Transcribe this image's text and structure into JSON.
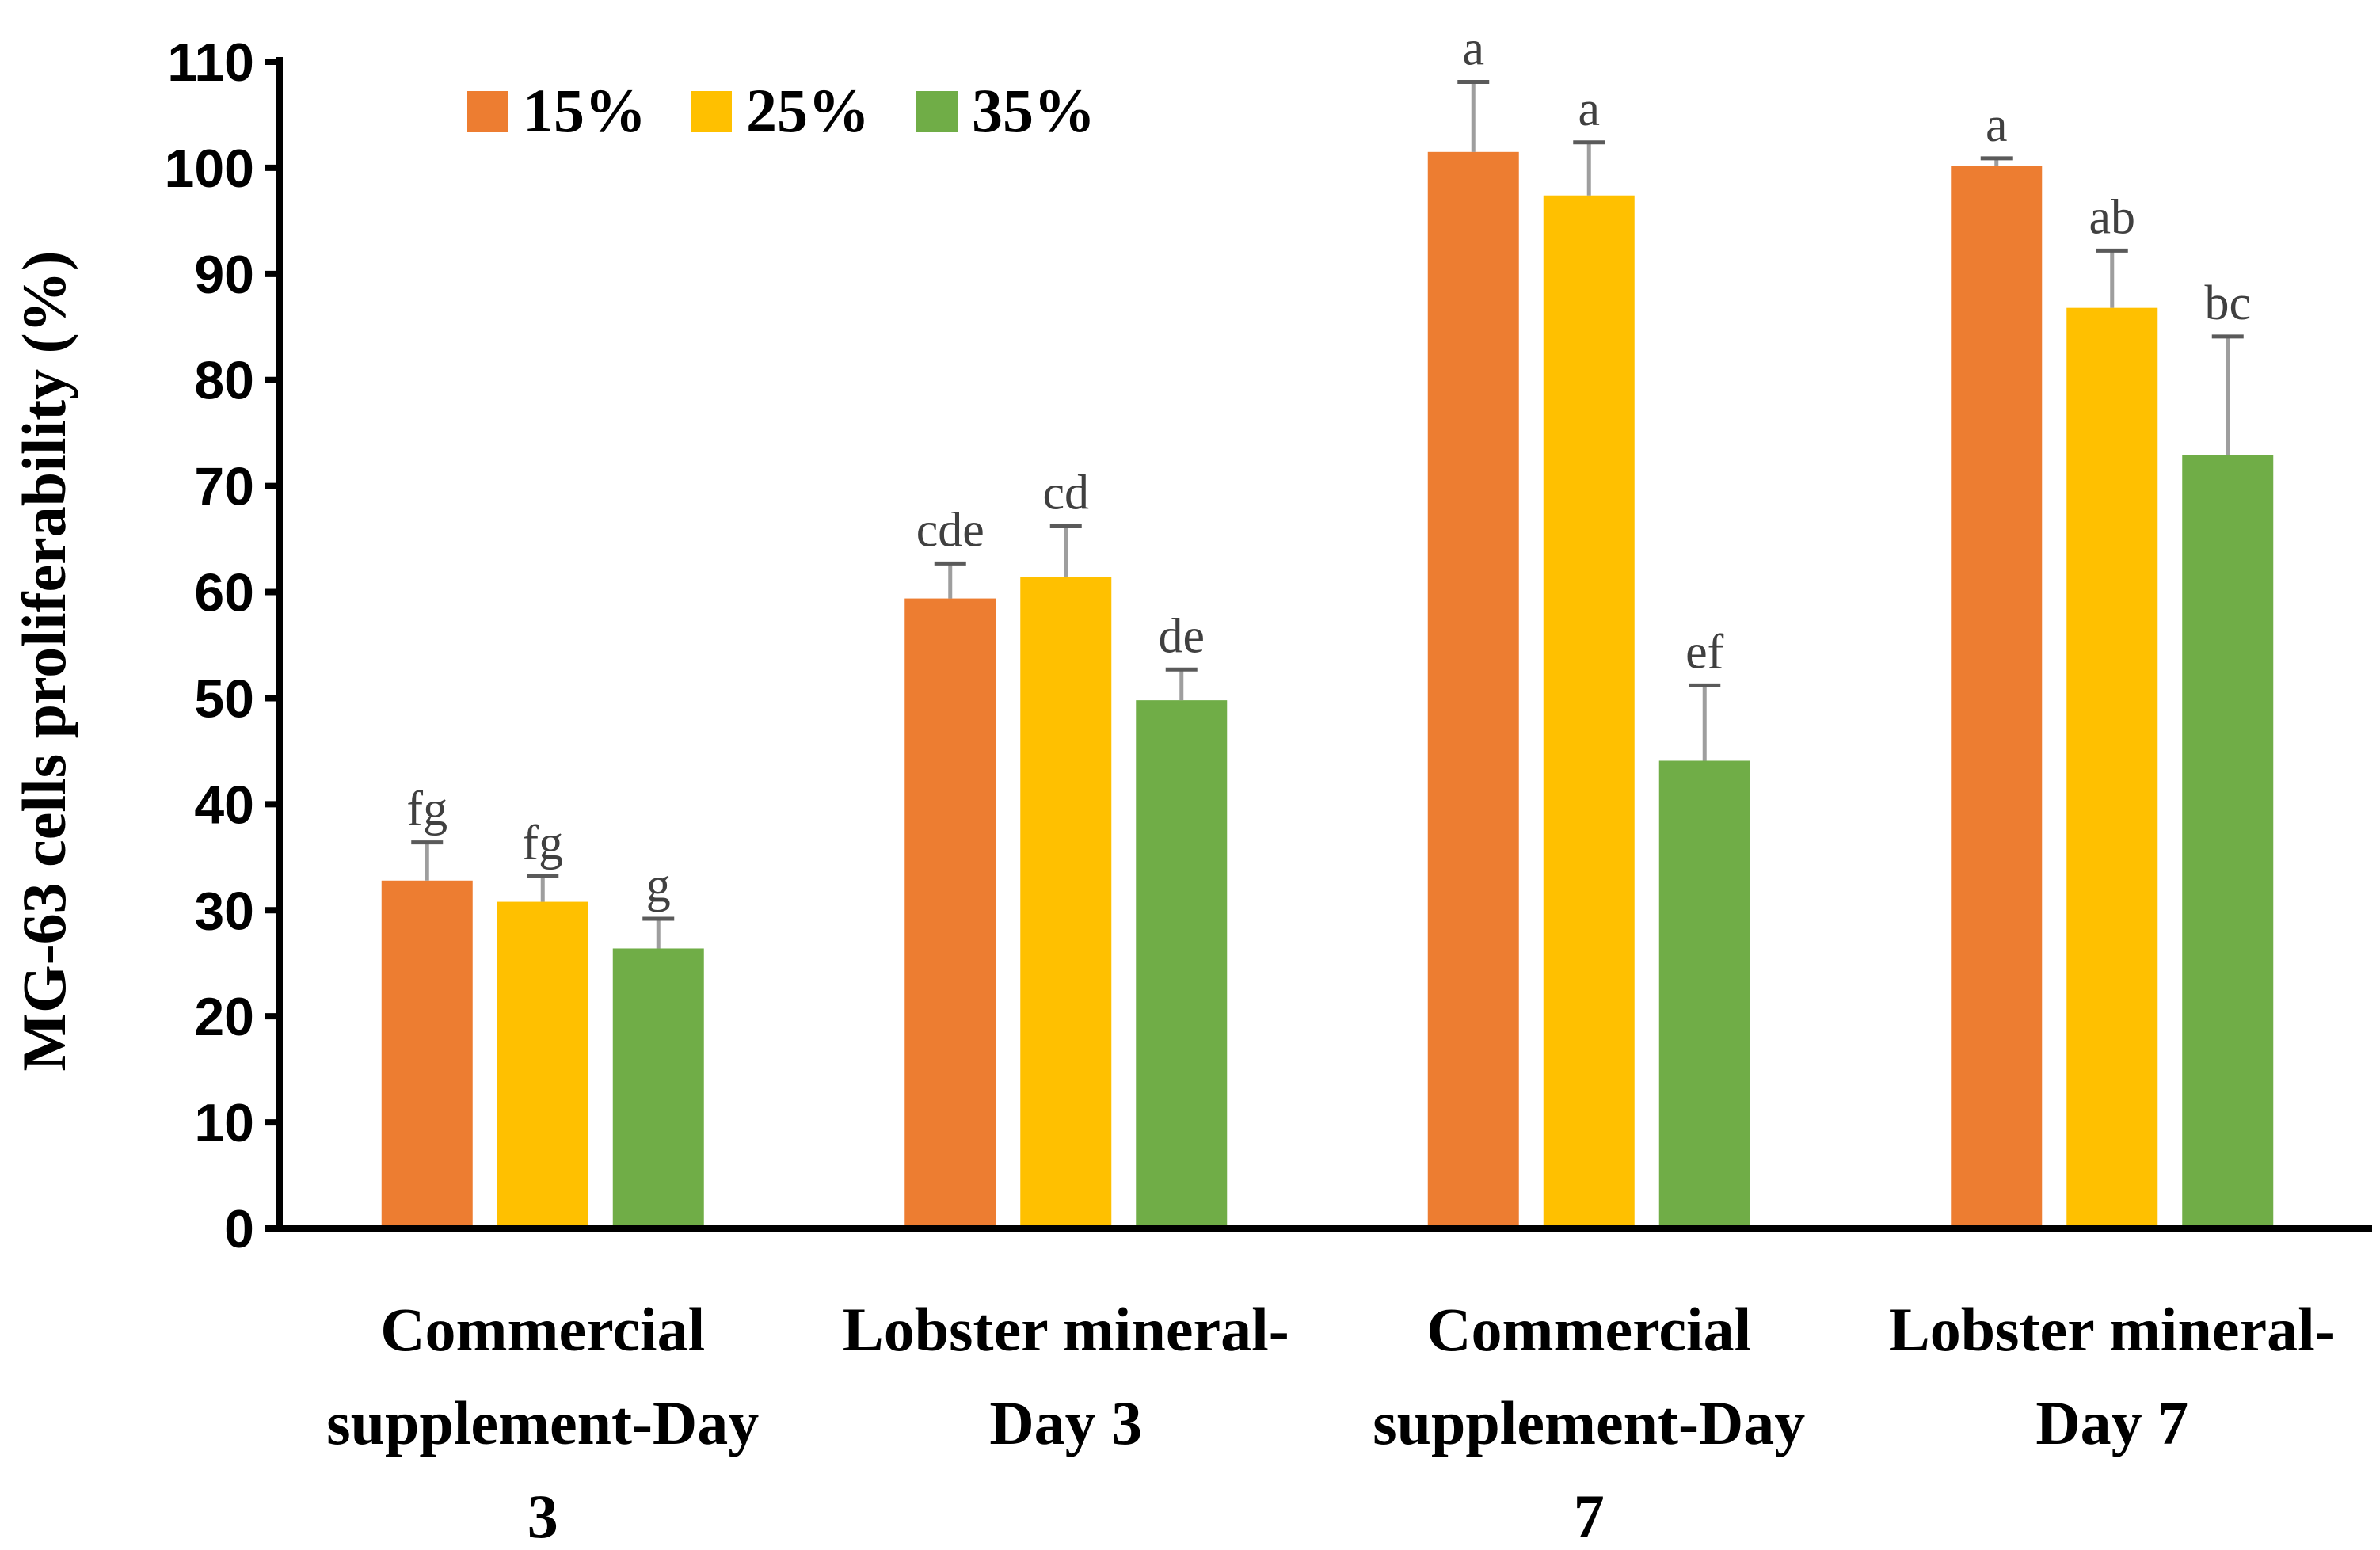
{
  "chart_data": {
    "type": "bar",
    "title": "",
    "xlabel": "",
    "ylabel": "MG-63 cells proliferability (%)",
    "ylim": [
      0,
      110
    ],
    "yticks": [
      "0",
      "10",
      "20",
      "30",
      "40",
      "50",
      "60",
      "70",
      "80",
      "90",
      "100",
      "110"
    ],
    "categories": [
      [
        "Commercial",
        "supplement-Day",
        "3"
      ],
      [
        "Lobster mineral-",
        "Day 3"
      ],
      [
        "Commercial",
        "supplement-Day",
        "7"
      ],
      [
        "Lobster mineral-",
        "Day 7"
      ]
    ],
    "legend_position": "top-left",
    "series": [
      {
        "name": "15%",
        "color": "#ED7D31",
        "values": [
          32.8,
          59.4,
          101.5,
          100.2
        ],
        "errors": [
          3.6,
          3.3,
          6.6,
          0.7
        ],
        "labels": [
          "fg",
          "cde",
          "a",
          "a"
        ]
      },
      {
        "name": "25%",
        "color": "#FFC000",
        "values": [
          30.8,
          61.4,
          97.4,
          86.8
        ],
        "errors": [
          2.4,
          4.8,
          5.0,
          5.4
        ],
        "labels": [
          "fg",
          "cd",
          "a",
          "ab"
        ]
      },
      {
        "name": "35%",
        "color": "#70AD47",
        "values": [
          26.4,
          49.8,
          44.1,
          72.9
        ],
        "errors": [
          2.8,
          2.9,
          7.1,
          11.2
        ],
        "labels": [
          "g",
          "de",
          "ef",
          "bc"
        ]
      }
    ],
    "errorbar_color": "#9E9E9E",
    "axis_color": "#000000"
  }
}
